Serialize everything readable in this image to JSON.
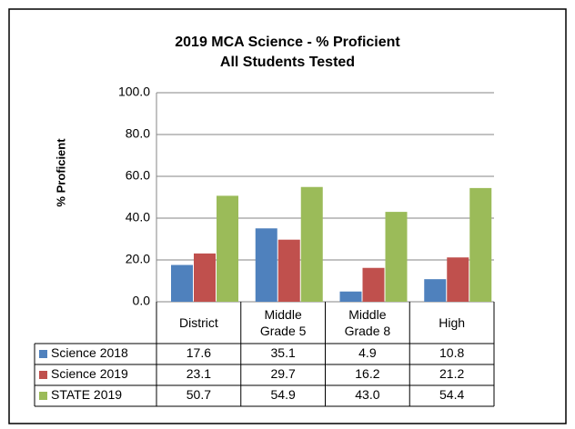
{
  "chart_data": {
    "type": "bar",
    "title": "2019 MCA Science - % Proficient",
    "subtitle": "All Students Tested",
    "y_label": "% Proficient",
    "categories": [
      "District",
      "Middle Grade 5",
      "Middle Grade 8",
      "High"
    ],
    "series": [
      {
        "name": "Science 2018",
        "color": "#4f81bd",
        "values": [
          17.6,
          35.1,
          4.9,
          10.8
        ],
        "value_labels": [
          "17.6",
          "35.1",
          "4.9",
          "10.8"
        ]
      },
      {
        "name": "Science 2019",
        "color": "#c0504d",
        "values": [
          23.1,
          29.7,
          16.2,
          21.2
        ],
        "value_labels": [
          "23.1",
          "29.7",
          "16.2",
          "21.2"
        ]
      },
      {
        "name": "STATE 2019",
        "color": "#9bbb59",
        "values": [
          50.7,
          54.9,
          43.0,
          54.4
        ],
        "value_labels": [
          "50.7",
          "54.9",
          "43.0",
          "54.4"
        ]
      }
    ],
    "ylim": [
      0,
      100
    ],
    "yticks": [
      {
        "value": 0,
        "label": "0.0"
      },
      {
        "value": 20,
        "label": "20.0"
      },
      {
        "value": 40,
        "label": "40.0"
      },
      {
        "value": 60,
        "label": "60.0"
      },
      {
        "value": 80,
        "label": "80.0"
      },
      {
        "value": 100,
        "label": "100.0"
      }
    ],
    "grid": true
  }
}
